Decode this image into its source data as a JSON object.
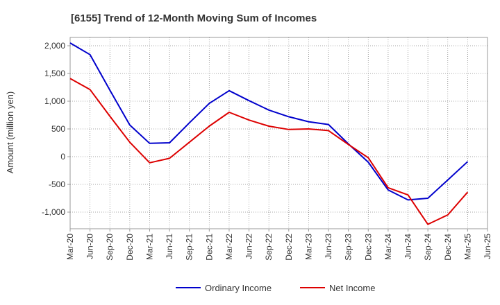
{
  "chart_data": {
    "type": "line",
    "title": "[6155]  Trend of 12-Month Moving Sum of Incomes",
    "xlabel": "",
    "ylabel": "Amount (million yen)",
    "ylim": [
      -1300,
      2150
    ],
    "yticks": [
      -1000,
      -500,
      0,
      500,
      1000,
      1500,
      2000
    ],
    "ytick_labels": [
      "-1,000",
      "-500",
      "0",
      "500",
      "1,000",
      "1,500",
      "2,000"
    ],
    "categories": [
      "Mar-20",
      "Jun-20",
      "Sep-20",
      "Dec-20",
      "Mar-21",
      "Jun-21",
      "Sep-21",
      "Dec-21",
      "Mar-22",
      "Jun-22",
      "Sep-22",
      "Dec-22",
      "Mar-23",
      "Jun-23",
      "Sep-23",
      "Dec-23",
      "Mar-24",
      "Jun-24",
      "Sep-24",
      "Dec-24",
      "Mar-25",
      "Jun-25"
    ],
    "grid": true,
    "legend_position": "bottom",
    "series": [
      {
        "name": "Ordinary Income",
        "color": "#0000cc",
        "values": [
          2050,
          1840,
          1200,
          570,
          240,
          250,
          610,
          960,
          1190,
          1010,
          840,
          720,
          630,
          580,
          230,
          -100,
          -600,
          -780,
          -750,
          -420,
          -90,
          null
        ]
      },
      {
        "name": "Net Income",
        "color": "#dd0000",
        "values": [
          1410,
          1210,
          730,
          260,
          -110,
          -30,
          260,
          550,
          800,
          660,
          550,
          490,
          500,
          470,
          220,
          -20,
          -560,
          -690,
          -1220,
          -1050,
          -640,
          null
        ]
      }
    ]
  }
}
